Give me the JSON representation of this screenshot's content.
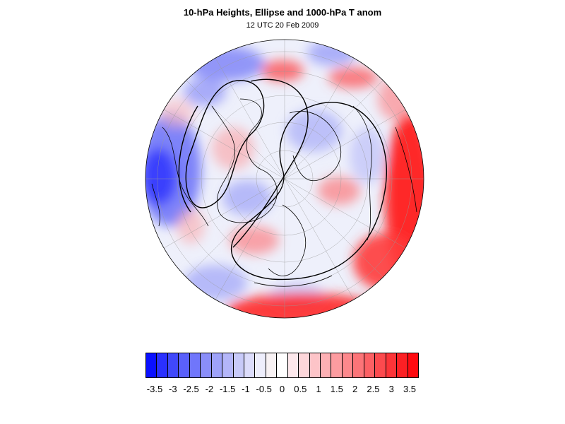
{
  "header": {
    "title": "10-hPa Heights, Ellipse and 1000-hPa T anom",
    "subtitle": "12 UTC 20 Feb 2009"
  },
  "map": {
    "projection": "orthographic polar (northern hemisphere)",
    "field": "1000-hPa temperature anomaly",
    "overlay": "10-hPa height contours and ellipse",
    "coastlines": true,
    "graticule": true
  },
  "colorbar": {
    "labels": [
      "-3.5",
      "-3",
      "-2.5",
      "-2",
      "-1.5",
      "-1",
      "-0.5",
      "0",
      "0.5",
      "1",
      "1.5",
      "2",
      "2.5",
      "3",
      "3.5"
    ],
    "colors": [
      "#0a10ff",
      "#2a30ff",
      "#4048fb",
      "#5a60fb",
      "#7076fb",
      "#8a8ef9",
      "#9ea2f9",
      "#b4b6f9",
      "#c8caf9",
      "#dcdcfb",
      "#eeeefc",
      "#f8f2f4",
      "#ffffff",
      "#fde8ec",
      "#fdd6da",
      "#fdc4c8",
      "#fdb0b4",
      "#fd9ca0",
      "#fd888c",
      "#fc7478",
      "#fc6064",
      "#fc4a4e",
      "#fc3438",
      "#fc2024",
      "#ff0a10"
    ]
  }
}
